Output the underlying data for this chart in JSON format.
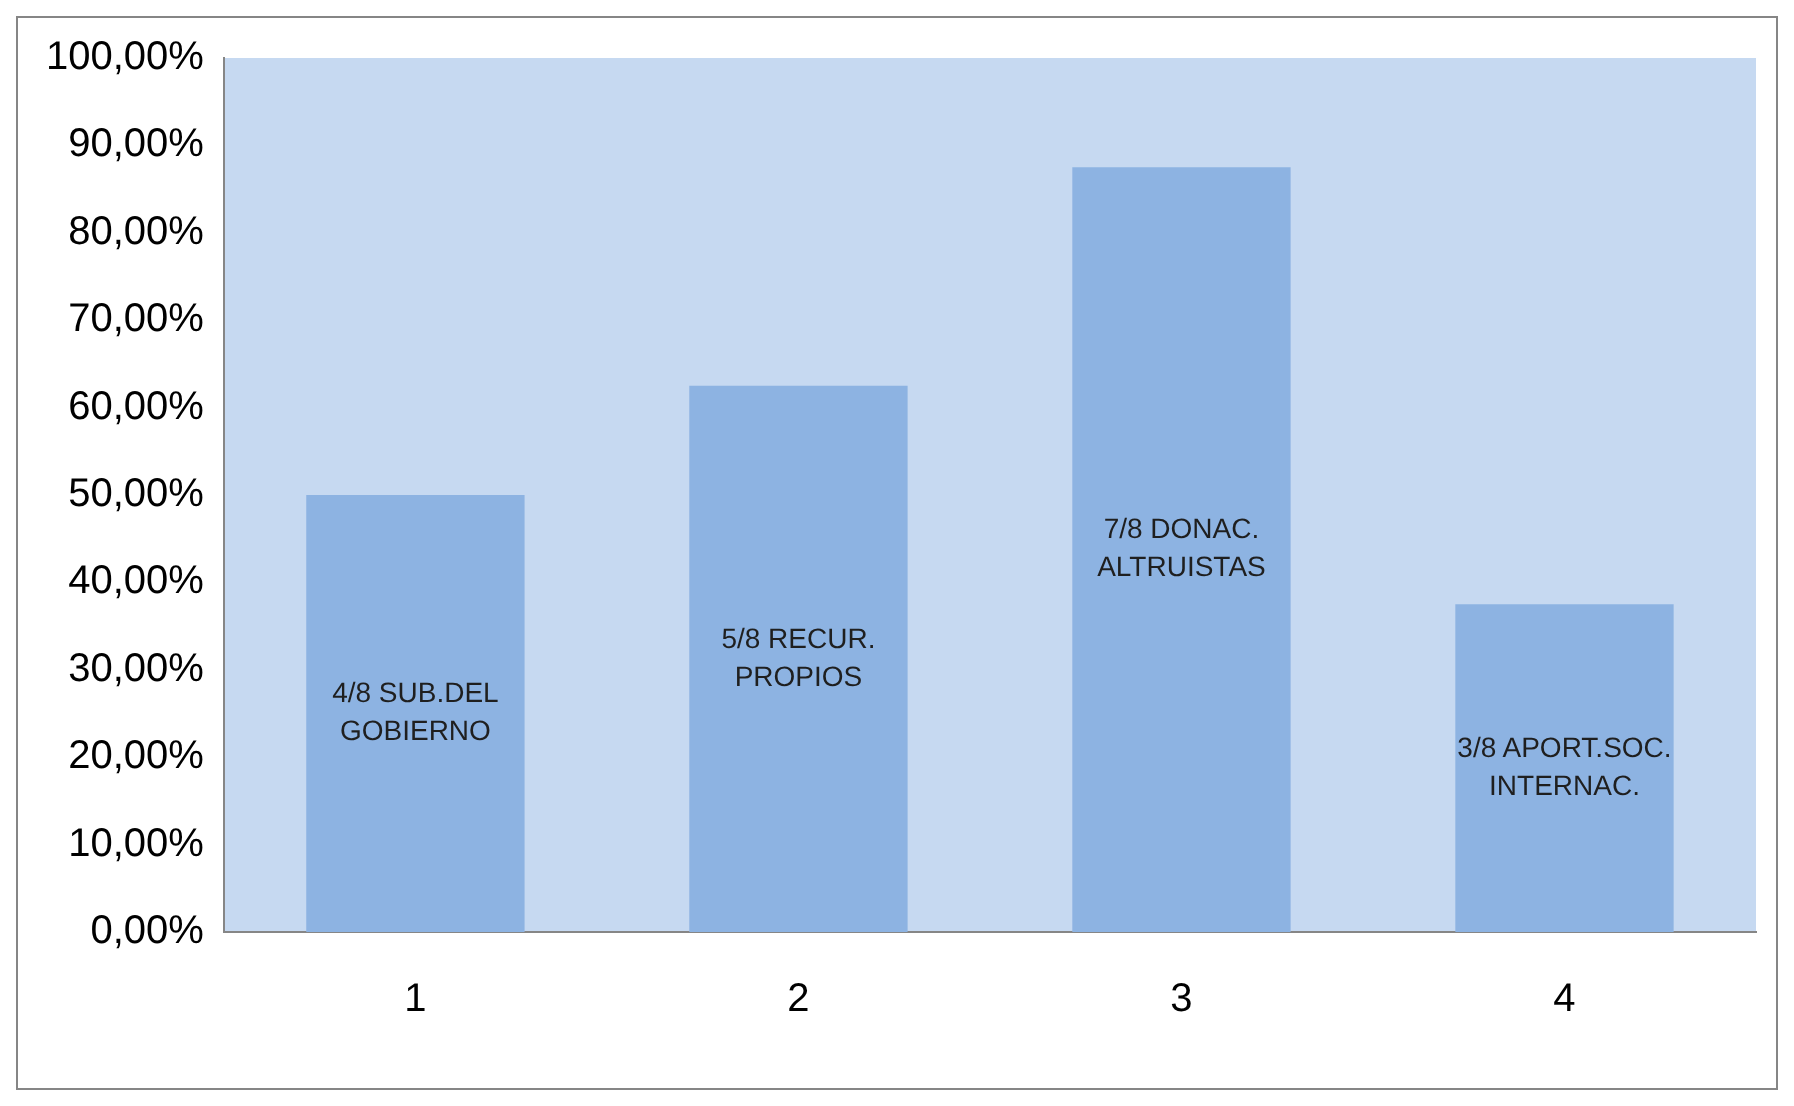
{
  "chart_data": {
    "type": "bar",
    "categories": [
      "1",
      "2",
      "3",
      "4"
    ],
    "values": [
      50,
      62.5,
      87.5,
      37.5
    ],
    "color": "#8db3e2",
    "ylim": [
      0,
      100
    ],
    "yticks": [
      {
        "value": 0,
        "label": "0,00%"
      },
      {
        "value": 10,
        "label": "10,00%"
      },
      {
        "value": 20,
        "label": "20,00%"
      },
      {
        "value": 30,
        "label": "30,00%"
      },
      {
        "value": 40,
        "label": "40,00%"
      },
      {
        "value": 50,
        "label": "50,00%"
      },
      {
        "value": 60,
        "label": "60,00%"
      },
      {
        "value": 70,
        "label": "70,00%"
      },
      {
        "value": 80,
        "label": "80,00%"
      },
      {
        "value": 90,
        "label": "90,00%"
      },
      {
        "value": 100,
        "label": "100,00%"
      }
    ],
    "grid": false,
    "legend": false,
    "annotations": [
      "4/8 SUB.DEL\nGOBIERNO",
      "5/8 RECUR.\nPROPIOS",
      "7/8 DONAC.\nALTRUISTAS",
      "3/8 APORT.SOC.\nINTERNAC."
    ]
  }
}
